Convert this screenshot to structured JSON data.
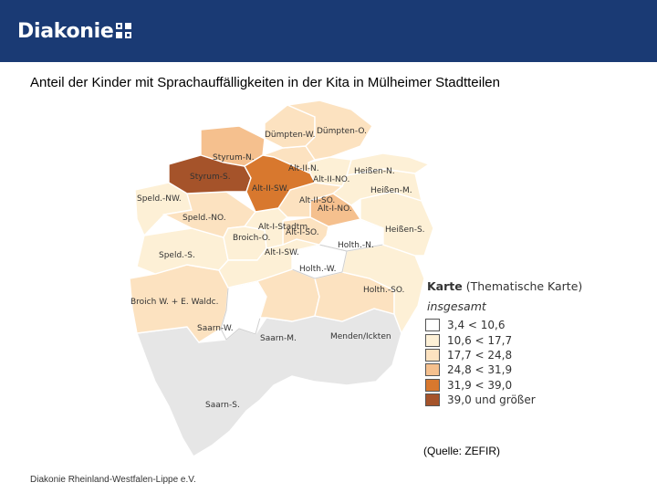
{
  "header": {
    "logo_text": "Diakonie",
    "logo_mark": "diakonie-cross-icon",
    "color": "#1a3a74"
  },
  "title": "Anteil der Kinder mit Sprachauffälligkeiten in der Kita in Mülheimer Stadtteilen",
  "legend": {
    "title_bold": "Karte",
    "title_rest": " (Thematische Karte)",
    "subtitle": "insgesamt",
    "classes": [
      {
        "label": "3,4 < 10,6",
        "color": "#ffffff"
      },
      {
        "label": "10,6 < 17,7",
        "color": "#fdf0d6"
      },
      {
        "label": "17,7 < 24,8",
        "color": "#fce2c0"
      },
      {
        "label": "24,8 < 31,9",
        "color": "#f5c08e"
      },
      {
        "label": "31,9 < 39,0",
        "color": "#d8782e"
      },
      {
        "label": "39,0 und größer",
        "color": "#a5532a"
      }
    ]
  },
  "districts": [
    {
      "name": "Dümpten-W.",
      "color": "#fce2c0"
    },
    {
      "name": "Dümpten-O.",
      "color": "#fce2c0"
    },
    {
      "name": "Styrum-N.",
      "color": "#f5c08e"
    },
    {
      "name": "Styrum-S.",
      "color": "#a5532a"
    },
    {
      "name": "Alt-II-N.",
      "color": "#fce2c0"
    },
    {
      "name": "Alt-II-NO.",
      "color": "#fdf0d6"
    },
    {
      "name": "Alt-II-SW.",
      "color": "#d8782e"
    },
    {
      "name": "Heißen-N.",
      "color": "#fdf0d6"
    },
    {
      "name": "Heißen-M.",
      "color": "#fdf0d6"
    },
    {
      "name": "Speld.-NW.",
      "color": "#fdf0d6"
    },
    {
      "name": "Alt-II-SO.",
      "color": "#fce2c0"
    },
    {
      "name": "Alt-I-NO.",
      "color": "#f5c08e"
    },
    {
      "name": "Speld.-NO.",
      "color": "#fce2c0"
    },
    {
      "name": "Alt-I-Stadtm.",
      "color": "#fdf0d6"
    },
    {
      "name": "Broich-O.",
      "color": "#fdf0d6"
    },
    {
      "name": "Alt-I-SO.",
      "color": "#fce2c0"
    },
    {
      "name": "Heißen-S.",
      "color": "#fdf0d6"
    },
    {
      "name": "Holth.-N.",
      "color": "#ffffff"
    },
    {
      "name": "Alt-I-SW.",
      "color": "#fdf0d6"
    },
    {
      "name": "Speld.-S.",
      "color": "#fdf0d6"
    },
    {
      "name": "Holth.-W.",
      "color": "#ffffff"
    },
    {
      "name": "Holth.-SO.",
      "color": "#fdf0d6"
    },
    {
      "name": "Broich W. + E. Waldc.",
      "color": "#fce2c0"
    },
    {
      "name": "Saarn-W.",
      "color": "#ffffff"
    },
    {
      "name": "Saarn-M.",
      "color": "#fce2c0"
    },
    {
      "name": "Menden/Ickten",
      "color": "#fce2c0"
    },
    {
      "name": "Saarn-S.",
      "color": "#e6e6e6"
    }
  ],
  "source": "(Quelle: ZEFIR)",
  "footer": "Diakonie Rheinland-Westfalen-Lippe e.V."
}
